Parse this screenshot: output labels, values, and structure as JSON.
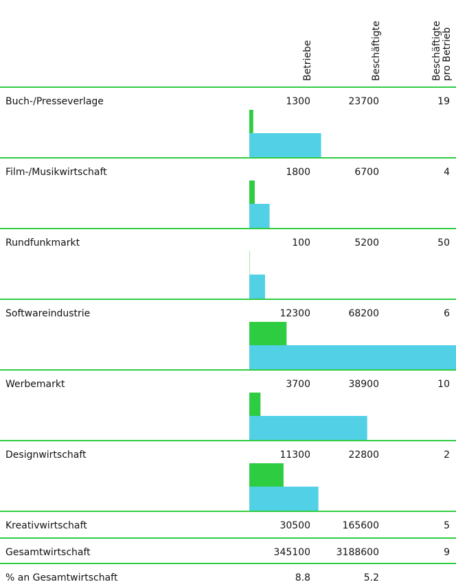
{
  "header": {
    "columns": [
      "Betriebe",
      "Beschäftigte",
      [
        "Beschäftigte",
        "pro Betrieb"
      ]
    ]
  },
  "table": {
    "rows": [
      {
        "name": "Buch-/Presseverlage",
        "betriebe": 1300,
        "beschaeftigte": 23700,
        "pro_betrieb": 19
      },
      {
        "name": "Film-/Musikwirtschaft",
        "betriebe": 1800,
        "beschaeftigte": 6700,
        "pro_betrieb": 4
      },
      {
        "name": "Rundfunkmarkt",
        "betriebe": 100,
        "beschaeftigte": 5200,
        "pro_betrieb": 50
      },
      {
        "name": "Softwareindustrie",
        "betriebe": 12300,
        "beschaeftigte": 68200,
        "pro_betrieb": 6
      },
      {
        "name": "Werbemarkt",
        "betriebe": 3700,
        "beschaeftigte": 38900,
        "pro_betrieb": 10
      },
      {
        "name": "Designwirtschaft",
        "betriebe": 11300,
        "beschaeftigte": 22800,
        "pro_betrieb": 2
      }
    ],
    "totals": [
      {
        "name": "Kreativwirtschaft",
        "betriebe": 30500,
        "beschaeftigte": 165600,
        "pro_betrieb": 5
      },
      {
        "name": "Gesamtwirtschaft",
        "betriebe": 345100,
        "beschaeftigte": 3188600,
        "pro_betrieb": 9
      },
      {
        "name": "% an Gesamtwirtschaft",
        "betriebe": 8.8,
        "beschaeftigte": 5.2
      }
    ]
  },
  "colors": {
    "betriebe": "#2ecc40",
    "beschaeftigte": "#52d0e6",
    "rule": "#2ecc40"
  }
}
